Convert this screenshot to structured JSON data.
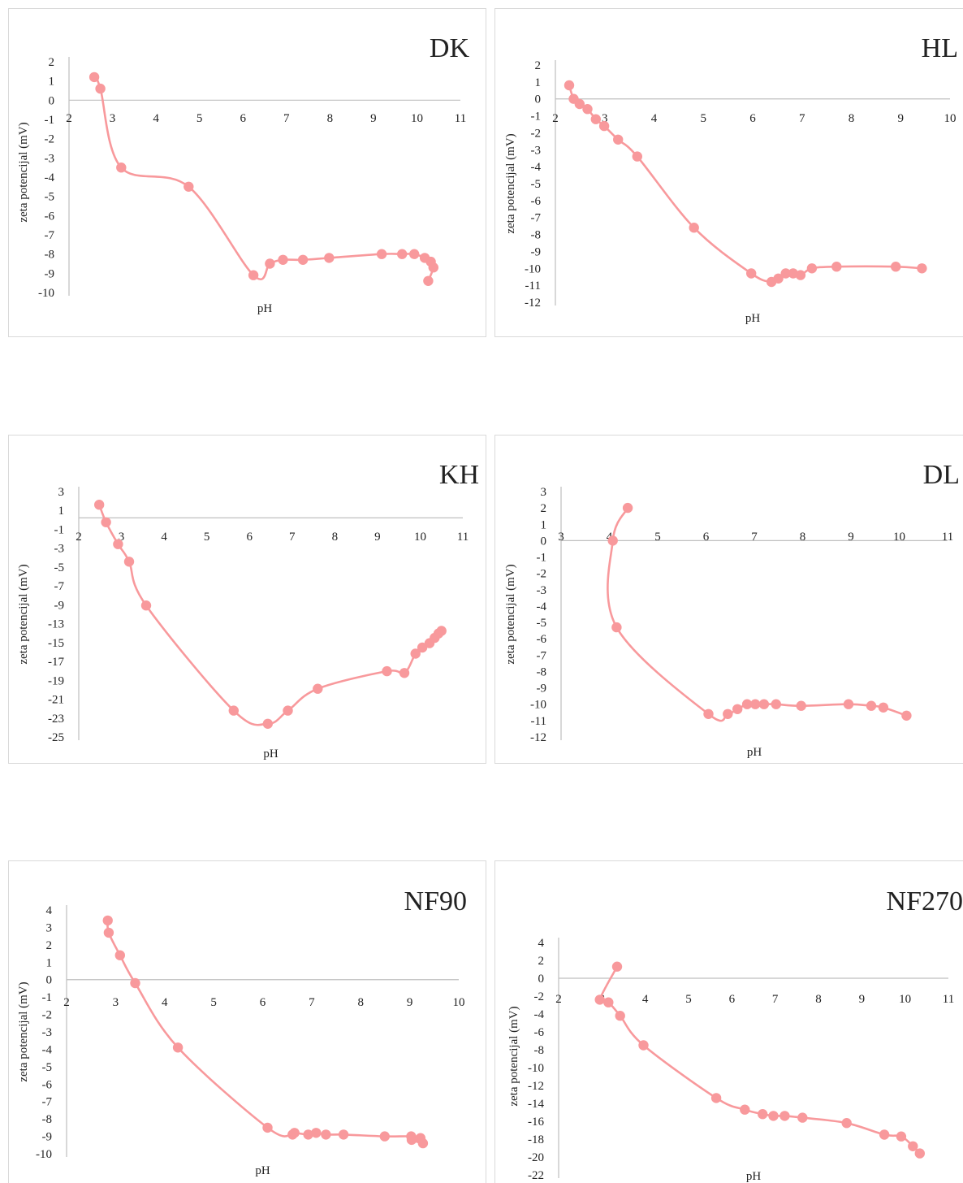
{
  "series_color": "#f8999c",
  "chart_data": [
    {
      "type": "scatter",
      "title": "DK",
      "xlabel": "pH",
      "ylabel": "zeta potencijal (mV)",
      "xlim": [
        2,
        11
      ],
      "ylim": [
        -10,
        2
      ],
      "x_ticks": [
        "2",
        "3",
        "4",
        "5",
        "6",
        "7",
        "8",
        "9",
        "10",
        "11"
      ],
      "y_ticks": [
        "2",
        "1",
        "0",
        "-1",
        "-2",
        "-3",
        "-4",
        "-5",
        "-6",
        "-7",
        "-8",
        "-9",
        "-10"
      ],
      "x": [
        2.58,
        2.72,
        3.2,
        4.75,
        6.24,
        6.62,
        6.92,
        7.38,
        7.98,
        9.19,
        9.66,
        9.94,
        10.18,
        10.32,
        10.38,
        10.26
      ],
      "y": [
        1.2,
        0.6,
        -3.5,
        -4.5,
        -9.1,
        -8.5,
        -8.3,
        -8.3,
        -8.2,
        -8.0,
        -8.0,
        -8.0,
        -8.2,
        -8.4,
        -8.7,
        -9.4
      ]
    },
    {
      "type": "scatter",
      "title": "HL",
      "xlabel": "pH",
      "ylabel": "zeta potencijal (mV)",
      "xlim": [
        2,
        10
      ],
      "ylim": [
        -12,
        2
      ],
      "x_ticks": [
        "2",
        "3",
        "4",
        "5",
        "6",
        "7",
        "8",
        "9",
        "10"
      ],
      "y_ticks": [
        "2",
        "1",
        "0",
        "-1",
        "-2",
        "-3",
        "-4",
        "-5",
        "-6",
        "-7",
        "-8",
        "-9",
        "-10",
        "-11",
        "-12"
      ],
      "x": [
        2.28,
        2.37,
        2.49,
        2.65,
        2.82,
        2.99,
        3.27,
        3.66,
        4.81,
        5.97,
        6.38,
        6.52,
        6.67,
        6.82,
        6.97,
        7.2,
        7.7,
        8.9,
        9.43
      ],
      "y": [
        0.8,
        0.0,
        -0.3,
        -0.6,
        -1.2,
        -1.6,
        -2.4,
        -3.4,
        -7.6,
        -10.3,
        -10.8,
        -10.6,
        -10.3,
        -10.3,
        -10.4,
        -10.0,
        -9.9,
        -9.9,
        -10.0
      ]
    },
    {
      "type": "scatter",
      "title": "KH",
      "xlabel": "pH",
      "ylabel": "zeta potencijal (mV)",
      "xlim": [
        2,
        11
      ],
      "ylim": [
        -25,
        3
      ],
      "x_ticks": [
        "2",
        "3",
        "4",
        "5",
        "6",
        "7",
        "8",
        "9",
        "10",
        "11"
      ],
      "y_ticks": [
        "3",
        "1",
        "-1",
        "-3",
        "-5",
        "-7",
        "-9",
        "-13",
        "-15",
        "-17",
        "-19",
        "-21",
        "-23",
        "-25"
      ],
      "x": [
        2.48,
        2.64,
        2.92,
        3.18,
        3.58,
        5.63,
        6.43,
        6.9,
        7.6,
        9.22,
        9.63,
        9.89,
        10.05,
        10.22,
        10.34,
        10.43,
        10.5
      ],
      "y": [
        1.5,
        -0.5,
        -3.0,
        -5.0,
        -10.0,
        -22.0,
        -23.5,
        -22.0,
        -19.5,
        -17.5,
        -17.7,
        -15.5,
        -14.8,
        -14.3,
        -13.7,
        -13.2,
        -12.9
      ]
    },
    {
      "type": "scatter",
      "title": "DL",
      "xlabel": "pH",
      "ylabel": "zeta potencijal (mV)",
      "xlim": [
        3,
        11
      ],
      "ylim": [
        -12,
        3
      ],
      "x_ticks": [
        "3",
        "4",
        "5",
        "6",
        "7",
        "8",
        "9",
        "10",
        "11"
      ],
      "y_ticks": [
        "3",
        "2",
        "1",
        "0",
        "-1",
        "-2",
        "-3",
        "-4",
        "-5",
        "-6",
        "-7",
        "-8",
        "-9",
        "-10",
        "-11",
        "-12"
      ],
      "x": [
        4.38,
        4.07,
        4.15,
        6.05,
        6.45,
        6.65,
        6.85,
        7.02,
        7.2,
        7.45,
        7.97,
        8.95,
        9.42,
        9.67,
        10.15
      ],
      "y": [
        2.0,
        0.0,
        -5.3,
        -10.6,
        -10.6,
        -10.3,
        -10.0,
        -10.0,
        -10.0,
        -10.0,
        -10.1,
        -10.0,
        -10.1,
        -10.2,
        -10.7
      ]
    },
    {
      "type": "scatter",
      "title": "NF90",
      "xlabel": "pH",
      "ylabel": "zeta potencijal (mV)",
      "xlim": [
        2,
        10
      ],
      "ylim": [
        -10,
        4
      ],
      "x_ticks": [
        "2",
        "3",
        "4",
        "5",
        "6",
        "7",
        "8",
        "9",
        "10"
      ],
      "y_ticks": [
        "4",
        "3",
        "2",
        "1",
        "0",
        "-1",
        "-2",
        "-3",
        "-4",
        "-5",
        "-6",
        "-7",
        "-8",
        "-9",
        "-10"
      ],
      "x": [
        2.84,
        2.86,
        3.09,
        3.4,
        4.27,
        6.1,
        6.61,
        6.65,
        6.93,
        7.09,
        7.29,
        7.65,
        8.49,
        9.03,
        9.22,
        9.27,
        9.04
      ],
      "y": [
        3.4,
        2.7,
        1.4,
        -0.2,
        -3.9,
        -8.5,
        -8.9,
        -8.8,
        -8.9,
        -8.8,
        -8.9,
        -8.9,
        -9.0,
        -9.0,
        -9.1,
        -9.4,
        -9.2
      ]
    },
    {
      "type": "scatter",
      "title": "NF270",
      "xlabel": "pH",
      "ylabel": "zeta potencijal (mV)",
      "xlim": [
        2,
        11
      ],
      "ylim": [
        -22,
        4
      ],
      "x_ticks": [
        "2",
        "3",
        "4",
        "5",
        "6",
        "7",
        "8",
        "9",
        "10",
        "11"
      ],
      "y_ticks": [
        "4",
        "2",
        "0",
        "-2",
        "-4",
        "-6",
        "-8",
        "-10",
        "-12",
        "-14",
        "-16",
        "-18",
        "-20",
        "-22"
      ],
      "x": [
        3.35,
        2.95,
        3.15,
        3.42,
        3.96,
        5.64,
        6.3,
        6.71,
        6.96,
        7.22,
        7.63,
        8.65,
        9.52,
        9.91,
        10.18,
        10.34
      ],
      "y": [
        1.3,
        -2.4,
        -2.7,
        -4.2,
        -7.5,
        -13.4,
        -14.7,
        -15.2,
        -15.4,
        -15.4,
        -15.6,
        -16.2,
        -17.5,
        -17.7,
        -18.8,
        -19.6
      ]
    }
  ]
}
